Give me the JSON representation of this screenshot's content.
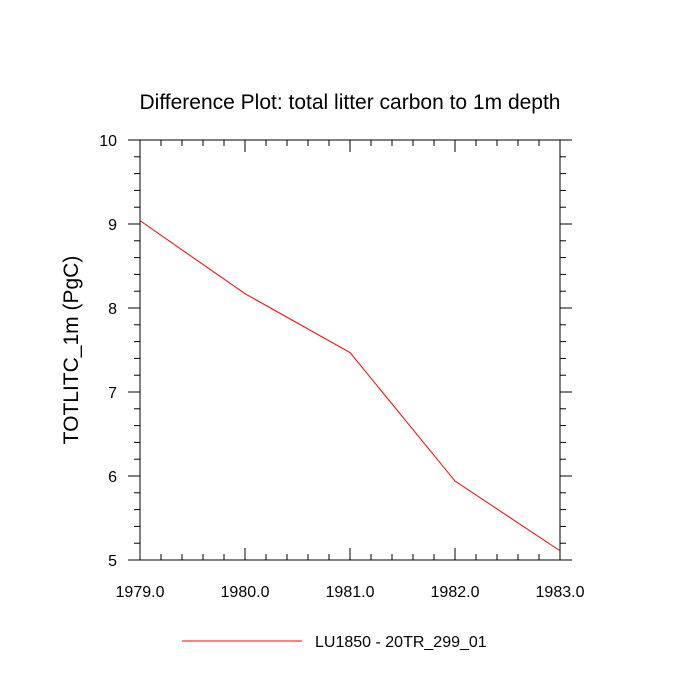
{
  "chart_data": {
    "type": "line",
    "title": "Difference Plot: total litter carbon to 1m depth",
    "xlabel": "",
    "ylabel": "TOTLITC_1m  (PgC)",
    "xlim": [
      1979.0,
      1983.0
    ],
    "ylim": [
      5,
      10
    ],
    "x_ticks": [
      1979.0,
      1980.0,
      1981.0,
      1982.0,
      1983.0
    ],
    "x_tick_labels": [
      "1979.0",
      "1980.0",
      "1981.0",
      "1982.0",
      "1983.0"
    ],
    "y_ticks": [
      5,
      6,
      7,
      8,
      9,
      10
    ],
    "y_tick_labels": [
      "5",
      "6",
      "7",
      "8",
      "9",
      "10"
    ],
    "grid": false,
    "legend_position": "bottom-center",
    "series": [
      {
        "name": "LU1850 - 20TR_299_01",
        "color": "#ff0000",
        "x": [
          1979.0,
          1980.0,
          1981.0,
          1982.0,
          1983.0
        ],
        "y": [
          9.04,
          8.17,
          7.47,
          5.94,
          5.11
        ]
      }
    ]
  }
}
